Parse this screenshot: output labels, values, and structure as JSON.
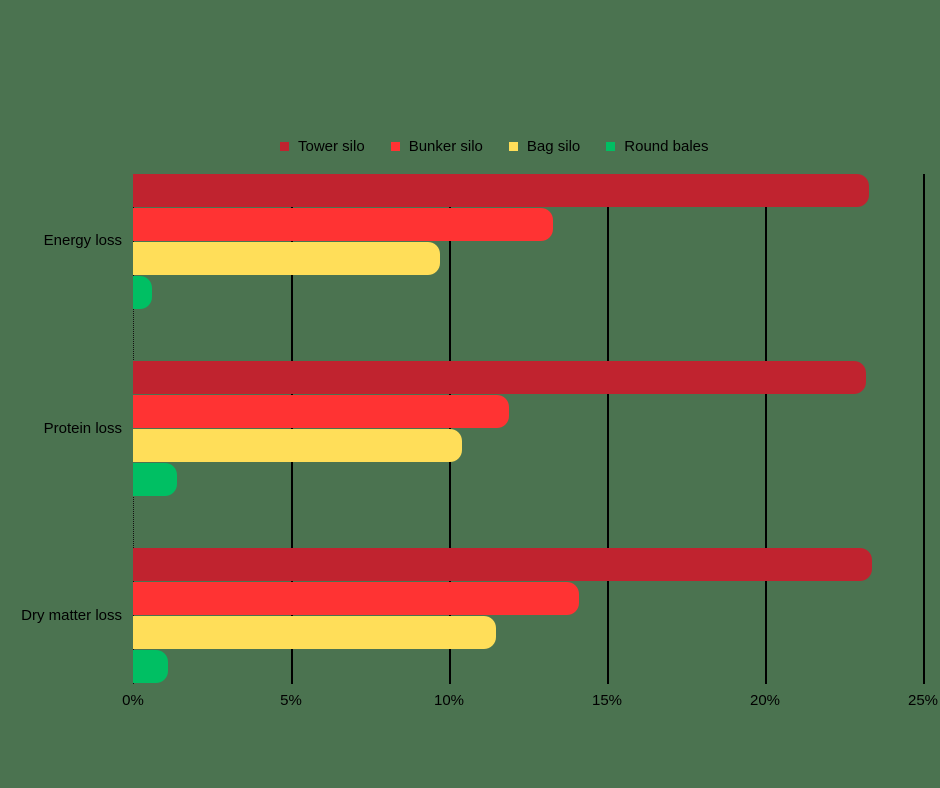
{
  "chart_data": {
    "type": "bar",
    "orientation": "horizontal",
    "title": "",
    "xlabel": "",
    "ylabel": "",
    "categories": [
      "Energy loss",
      "Protein loss",
      "Dry matter loss"
    ],
    "series": [
      {
        "name": "Tower silo",
        "color": "#c0232f",
        "values": [
          23.3,
          23.2,
          23.4
        ]
      },
      {
        "name": "Bunker silo",
        "color": "#ff3333",
        "values": [
          13.3,
          11.9,
          14.1
        ]
      },
      {
        "name": "Bag silo",
        "color": "#ffde59",
        "values": [
          9.7,
          10.4,
          11.5
        ]
      },
      {
        "name": "Round bales",
        "color": "#00bf63",
        "values": [
          0.6,
          1.4,
          1.1
        ]
      }
    ],
    "xlim": [
      0,
      25
    ],
    "xticks": [
      "0%",
      "5%",
      "10%",
      "15%",
      "20%",
      "25%"
    ],
    "grid": true,
    "legend_position": "top"
  },
  "legend": [
    {
      "label": "Tower silo",
      "color": "#c0232f"
    },
    {
      "label": "Bunker silo",
      "color": "#ff3333"
    },
    {
      "label": "Bag silo",
      "color": "#ffde59"
    },
    {
      "label": "Round bales",
      "color": "#00bf63"
    }
  ],
  "axis": {
    "ticks": [
      "0%",
      "5%",
      "10%",
      "15%",
      "20%",
      "25%"
    ]
  },
  "categories": [
    "Energy loss",
    "Protein loss",
    "Dry matter loss"
  ]
}
